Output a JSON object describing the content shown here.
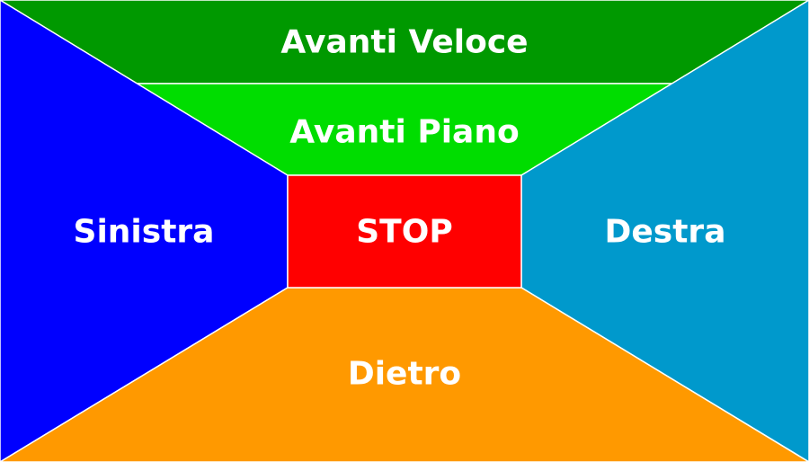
{
  "zones": {
    "fast_forward": {
      "label": "Avanti Veloce",
      "color": "#009900"
    },
    "slow_forward": {
      "label": "Avanti Piano",
      "color": "#00DD00"
    },
    "left": {
      "label": "Sinistra",
      "color": "#0000FF"
    },
    "stop": {
      "label": "STOP",
      "color": "#FF0000"
    },
    "right": {
      "label": "Destra",
      "color": "#0099CC"
    },
    "back": {
      "label": "Dietro",
      "color": "#FF9900"
    }
  }
}
